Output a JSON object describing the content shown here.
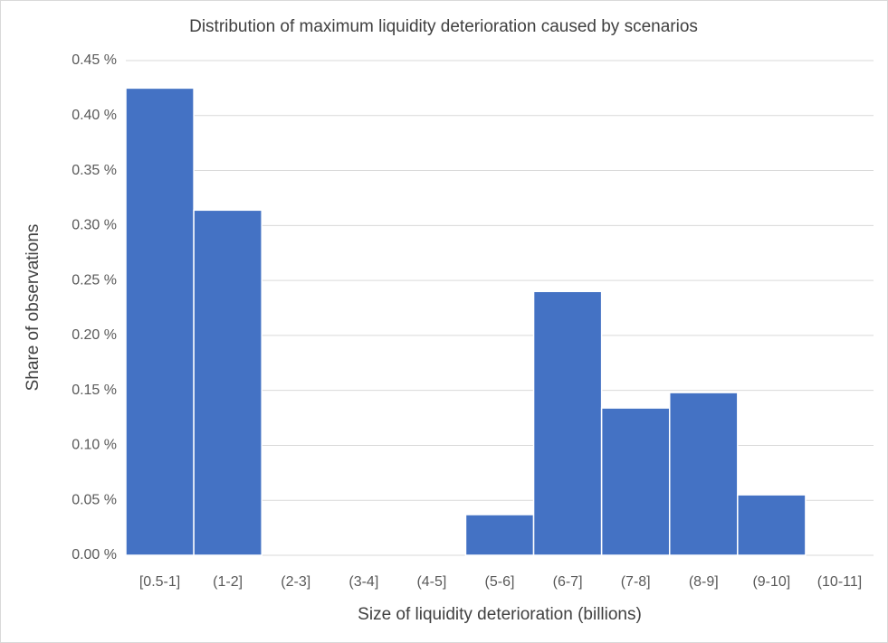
{
  "chart_data": {
    "type": "bar",
    "title": "Distribution of maximum liquidity deterioration caused by scenarios",
    "x_label": "Size of liquidity deterioration (billions)",
    "y_label": "Share of observations",
    "categories": [
      "[0.5-1]",
      "(1-2]",
      "(2-3]",
      "(3-4]",
      "(4-5]",
      "(5-6]",
      "(6-7]",
      "(7-8]",
      "(8-9]",
      "(9-10]",
      "(10-11]"
    ],
    "values": [
      0.425,
      0.314,
      0,
      0,
      0,
      0.037,
      0.24,
      0.134,
      0.148,
      0.055,
      0
    ],
    "color": "#4472c4",
    "ylim": [
      0,
      0.45
    ],
    "yticks": [
      {
        "value": 0,
        "label": "0.00 %"
      },
      {
        "value": 0.05,
        "label": "0.05 %"
      },
      {
        "value": 0.1,
        "label": "0.10 %"
      },
      {
        "value": 0.15,
        "label": "0.15 %"
      },
      {
        "value": 0.2,
        "label": "0.20 %"
      },
      {
        "value": 0.25,
        "label": "0.25 %"
      },
      {
        "value": 0.3,
        "label": "0.30 %"
      },
      {
        "value": 0.35,
        "label": "0.35 %"
      },
      {
        "value": 0.4,
        "label": "0.40 %"
      },
      {
        "value": 0.45,
        "label": "0.45 %"
      }
    ],
    "grid": true
  }
}
